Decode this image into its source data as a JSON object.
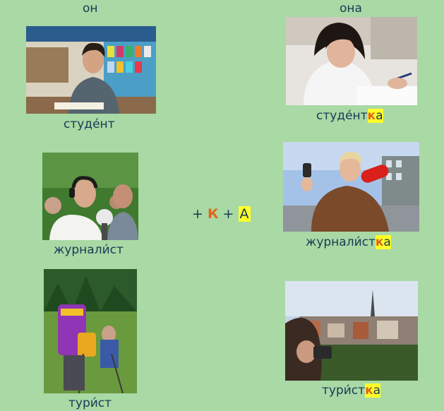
{
  "headers": {
    "male": "он",
    "female": "она"
  },
  "rows": [
    {
      "male": "студе́нт",
      "female_stem": "студе́нт",
      "suffix_k": "к",
      "suffix_a": "а",
      "male_photo": "photo-student-man",
      "female_photo": "photo-student-woman"
    },
    {
      "male": "журнали́ст",
      "female_stem": "журнали́ст",
      "suffix_k": "к",
      "suffix_a": "а",
      "male_photo": "photo-journalist-man",
      "female_photo": "photo-journalist-woman"
    },
    {
      "male": "тури́ст",
      "female_stem": "тури́ст",
      "suffix_k": "к",
      "suffix_a": "а",
      "male_photo": "photo-tourist-man",
      "female_photo": "photo-tourist-woman"
    }
  ],
  "formula": {
    "plus1": "+",
    "k": "К",
    "plus2": "+",
    "a": "А"
  },
  "colors": {
    "background": "#a9d9a4",
    "text": "#173a57",
    "suffix_highlight": "#ffff2a",
    "k_letter": "#e2641a"
  }
}
